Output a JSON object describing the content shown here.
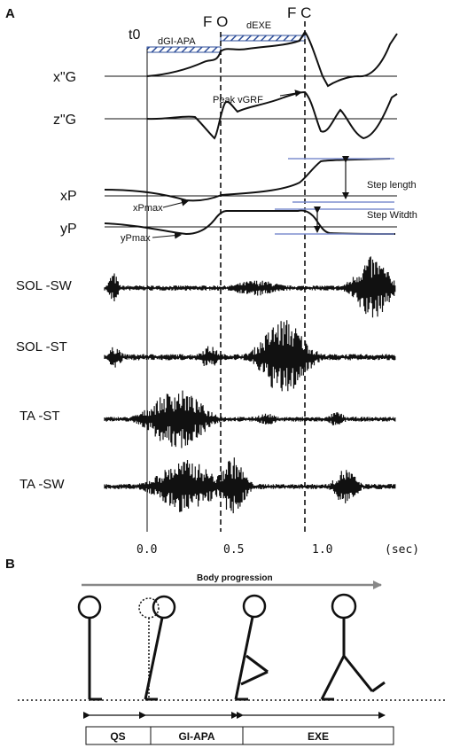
{
  "panel_a": {
    "letter": "A",
    "events": {
      "t0": "t0",
      "fo": "F O",
      "fc": "F C"
    },
    "durations": {
      "apa": "dGI-APA",
      "exe": "dEXE"
    },
    "traces": {
      "xg": "x\"G",
      "zg": "z\"G",
      "xp": "xP",
      "yp": "yP",
      "sol_sw": "SOL -SW",
      "sol_st": "SOL -ST",
      "ta_st": "TA -ST",
      "ta_sw": "TA -SW"
    },
    "annotations": {
      "peak_vgrf": "Peak vGRF",
      "xpmax": "xPmax",
      "ypmax": "yPmax",
      "step_length": "Step length",
      "step_width": "Step Witdth"
    },
    "time_axis": {
      "ticks": [
        "0.0",
        "0.5",
        "1.0"
      ],
      "unit": "(sec)"
    }
  },
  "panel_b": {
    "letter": "B",
    "progression": "Body progression",
    "phases": [
      "QS",
      "GI-APA",
      "EXE"
    ]
  },
  "colors": {
    "hatch_blue": "#2f4f9a",
    "level_blue": "#7f8fcf",
    "ink": "#111111"
  }
}
